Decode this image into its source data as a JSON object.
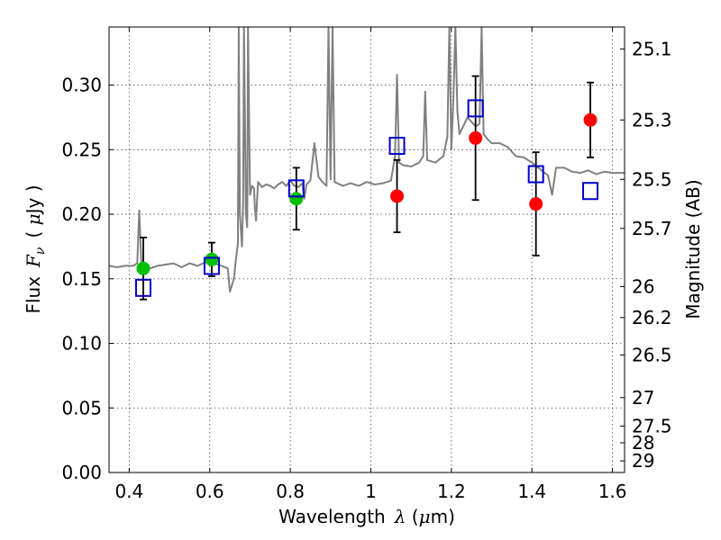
{
  "chart_data": {
    "type": "scatter",
    "xlabel_prefix": "Wavelength",
    "xlabel_symbol": "λ",
    "xlabel_unit_open": " (",
    "xlabel_unit_mu": "μ",
    "xlabel_unit_rest": "m)",
    "ylabel_prefix": "Flux",
    "ylabel_symbol": "F",
    "ylabel_sub": "ν",
    "ylabel_unit_open": "( ",
    "ylabel_unit_mu": "μ",
    "ylabel_unit_rest": "Jy )",
    "y2label": "Magnitude (AB)",
    "xlim": [
      0.35,
      1.63
    ],
    "ylim": [
      0.0,
      0.345
    ],
    "grid": true,
    "x_ticks": [
      0.4,
      0.6,
      0.8,
      1.0,
      1.2,
      1.4,
      1.6
    ],
    "x_tick_labels": [
      "0.4",
      "0.6",
      "0.8",
      "1",
      "1.2",
      "1.4",
      "1.6"
    ],
    "y_ticks": [
      0.0,
      0.05,
      0.1,
      0.15,
      0.2,
      0.25,
      0.3
    ],
    "y_tick_labels": [
      "0.00",
      "0.05",
      "0.10",
      "0.15",
      "0.20",
      "0.25",
      "0.30"
    ],
    "mag_ticks": [
      {
        "label": "25.1",
        "flux": 0.328
      },
      {
        "label": "25.3",
        "flux": 0.273
      },
      {
        "label": "25.5",
        "flux": 0.227
      },
      {
        "label": "25.7",
        "flux": 0.189
      },
      {
        "label": "26",
        "flux": 0.144
      },
      {
        "label": "26.2",
        "flux": 0.12
      },
      {
        "label": "26.5",
        "flux": 0.091
      },
      {
        "label": "27",
        "flux": 0.058
      },
      {
        "label": "27.5",
        "flux": 0.036
      },
      {
        "label": "28",
        "flux": 0.023
      },
      {
        "label": "29",
        "flux": 0.009
      }
    ],
    "series": [
      {
        "name": "model-spectrum",
        "style": "line",
        "color": "#808080",
        "x": [
          0.35,
          0.37,
          0.39,
          0.41,
          0.42,
          0.425,
          0.43,
          0.45,
          0.47,
          0.49,
          0.51,
          0.53,
          0.55,
          0.57,
          0.59,
          0.61,
          0.63,
          0.645,
          0.65,
          0.655,
          0.66,
          0.665,
          0.67,
          0.672,
          0.675,
          0.68,
          0.683,
          0.685,
          0.69,
          0.693,
          0.695,
          0.7,
          0.705,
          0.71,
          0.712,
          0.715,
          0.72,
          0.73,
          0.74,
          0.75,
          0.76,
          0.77,
          0.78,
          0.79,
          0.8,
          0.81,
          0.82,
          0.83,
          0.835,
          0.84,
          0.85,
          0.86,
          0.87,
          0.88,
          0.89,
          0.895,
          0.9,
          0.905,
          0.91,
          0.93,
          0.95,
          0.97,
          0.99,
          1.01,
          1.03,
          1.05,
          1.06,
          1.065,
          1.07,
          1.08,
          1.1,
          1.12,
          1.13,
          1.135,
          1.14,
          1.16,
          1.18,
          1.19,
          1.195,
          1.2,
          1.205,
          1.21,
          1.215,
          1.22,
          1.24,
          1.26,
          1.27,
          1.275,
          1.28,
          1.29,
          1.3,
          1.32,
          1.34,
          1.36,
          1.38,
          1.4,
          1.42,
          1.44,
          1.45,
          1.46,
          1.48,
          1.5,
          1.52,
          1.54,
          1.56,
          1.58,
          1.6,
          1.63
        ],
        "y": [
          0.16,
          0.159,
          0.16,
          0.16,
          0.162,
          0.203,
          0.162,
          0.158,
          0.16,
          0.161,
          0.162,
          0.159,
          0.162,
          0.16,
          0.163,
          0.162,
          0.16,
          0.158,
          0.14,
          0.145,
          0.15,
          0.165,
          0.178,
          0.345,
          0.2,
          0.175,
          0.21,
          0.345,
          0.2,
          0.19,
          0.345,
          0.215,
          0.222,
          0.22,
          0.205,
          0.195,
          0.225,
          0.221,
          0.223,
          0.222,
          0.22,
          0.223,
          0.225,
          0.222,
          0.226,
          0.222,
          0.221,
          0.224,
          0.212,
          0.223,
          0.226,
          0.255,
          0.229,
          0.225,
          0.222,
          0.345,
          0.227,
          0.345,
          0.225,
          0.222,
          0.224,
          0.222,
          0.225,
          0.223,
          0.224,
          0.226,
          0.245,
          0.308,
          0.24,
          0.238,
          0.237,
          0.24,
          0.245,
          0.295,
          0.242,
          0.24,
          0.245,
          0.26,
          0.345,
          0.25,
          0.29,
          0.345,
          0.28,
          0.262,
          0.275,
          0.268,
          0.27,
          0.345,
          0.262,
          0.258,
          0.255,
          0.255,
          0.252,
          0.245,
          0.244,
          0.24,
          0.235,
          0.23,
          0.215,
          0.236,
          0.236,
          0.233,
          0.232,
          0.234,
          0.231,
          0.233,
          0.232,
          0.232
        ]
      },
      {
        "name": "observed-green",
        "style": "marker",
        "color": "#00bf00",
        "marker": "circle",
        "x": [
          0.435,
          0.605,
          0.815
        ],
        "y": [
          0.158,
          0.165,
          0.212
        ],
        "err": [
          0.024,
          0.013,
          0.024
        ]
      },
      {
        "name": "observed-red",
        "style": "marker",
        "color": "#ff0000",
        "marker": "circle",
        "x": [
          1.065,
          1.26,
          1.41,
          1.545
        ],
        "y": [
          0.214,
          0.259,
          0.208,
          0.273
        ],
        "err": [
          0.028,
          0.048,
          0.04,
          0.029
        ]
      },
      {
        "name": "model-synthetic-photometry",
        "style": "marker",
        "color": "#0000cc",
        "marker": "open-square",
        "x": [
          0.435,
          0.605,
          0.815,
          1.065,
          1.26,
          1.41,
          1.545
        ],
        "y": [
          0.143,
          0.16,
          0.22,
          0.253,
          0.282,
          0.231,
          0.218
        ]
      }
    ]
  }
}
